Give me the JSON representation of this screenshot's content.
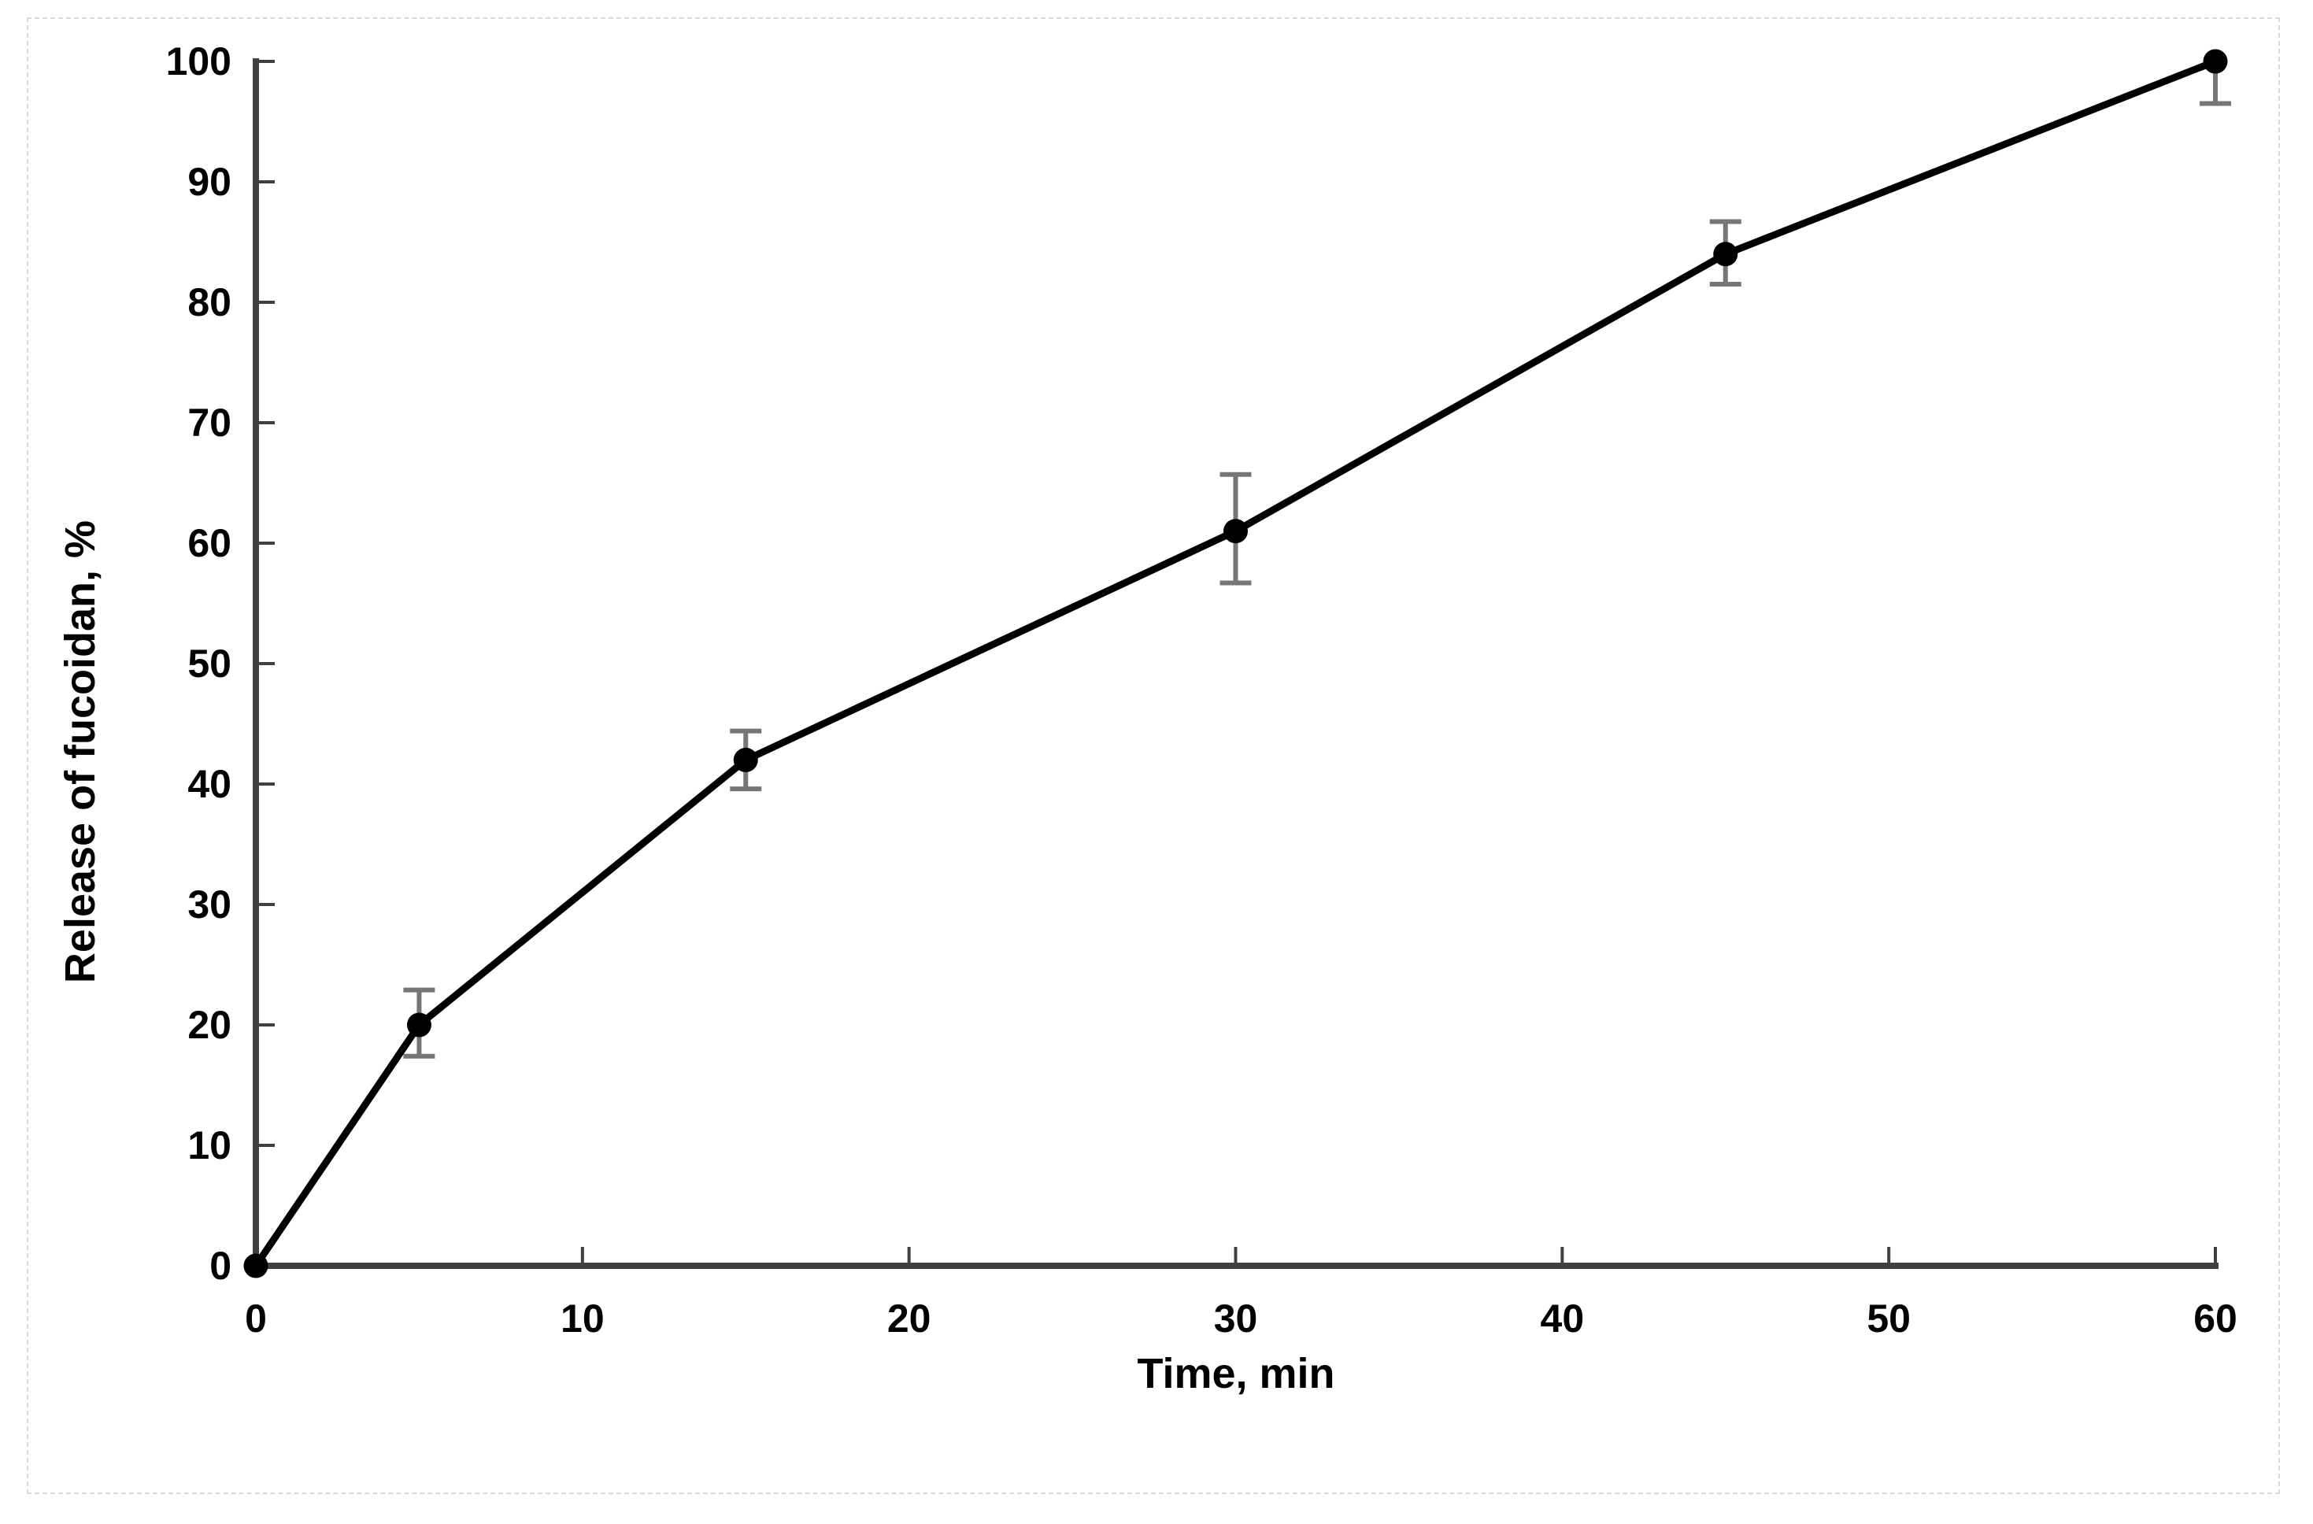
{
  "figure": {
    "background": "#ffffff",
    "border_color": "#d9d9d9"
  },
  "chart_data": {
    "type": "line",
    "title": "",
    "xlabel": "Time, min",
    "ylabel": "Release of fucoidan, %",
    "x": [
      0,
      5,
      15,
      30,
      45,
      60
    ],
    "y": [
      0,
      20,
      42,
      61,
      84,
      100
    ],
    "y_err_upper": [
      0,
      2.9,
      2.4,
      4.7,
      2.7,
      0
    ],
    "y_err_lower": [
      0,
      2.6,
      2.4,
      4.3,
      2.5,
      3.5
    ],
    "xlim": [
      0,
      60
    ],
    "ylim": [
      0,
      100
    ],
    "x_ticks": [
      0,
      10,
      20,
      30,
      40,
      50,
      60
    ],
    "y_ticks": [
      0,
      10,
      20,
      30,
      40,
      50,
      60,
      70,
      80,
      90,
      100
    ],
    "grid": false,
    "legend": null,
    "series_color": "#000000",
    "marker": "circle",
    "marker_color": "#000000",
    "error_bar_color": "#767676",
    "axis_color": "#404040",
    "tick_position": "inside"
  }
}
